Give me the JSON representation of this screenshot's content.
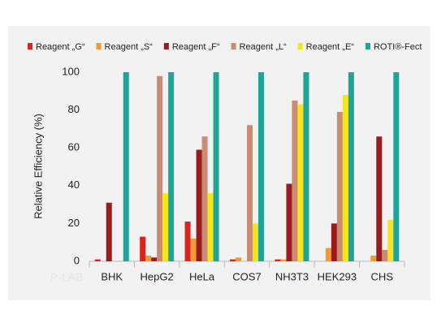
{
  "chart_data": {
    "type": "bar",
    "ylabel": "Relative Efficiency (%)",
    "watermark": "P-LAB",
    "categories": [
      "BHK",
      "HepG2",
      "HeLa",
      "COS7",
      "NH3T3",
      "HEK293",
      "CHS"
    ],
    "ylim": [
      0,
      100
    ],
    "yticks": [
      0,
      20,
      40,
      60,
      80,
      100
    ],
    "series": [
      {
        "name": "Reagent „G“",
        "color": "#d92420",
        "values": [
          1,
          13,
          21,
          1,
          1,
          0,
          0
        ]
      },
      {
        "name": "Reagent „S“",
        "color": "#f09a30",
        "values": [
          0,
          3,
          12,
          2,
          1,
          7,
          3
        ]
      },
      {
        "name": "Reagent „F“",
        "color": "#9a1b1b",
        "values": [
          31,
          2,
          59,
          0,
          41,
          20,
          66
        ]
      },
      {
        "name": "Reagent „L“",
        "color": "#c98b74",
        "values": [
          0,
          98,
          66,
          72,
          85,
          79,
          6
        ]
      },
      {
        "name": "Reagent „E“",
        "color": "#f6e51c",
        "values": [
          0,
          36,
          36,
          20,
          83,
          88,
          22
        ]
      },
      {
        "name": "ROTI®-Fect",
        "color": "#1ea596",
        "values": [
          100,
          100,
          100,
          100,
          100,
          100,
          100
        ]
      }
    ]
  }
}
